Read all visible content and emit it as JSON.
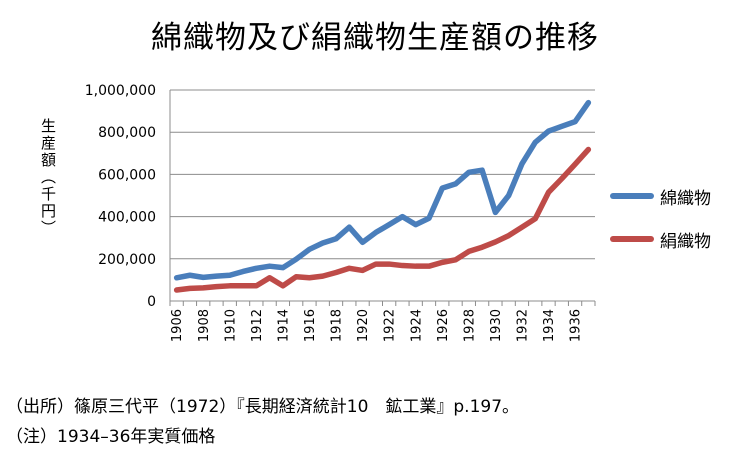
{
  "chart_data": {
    "type": "line",
    "title": "綿織物及び絹織物生産額の推移",
    "ylabel": "生産額（千円）",
    "ylim": [
      0,
      1000000
    ],
    "yticks": [
      0,
      200000,
      400000,
      600000,
      800000,
      1000000
    ],
    "ytick_labels": [
      "0",
      "200,000",
      "400,000",
      "600,000",
      "800,000",
      "1,000,000"
    ],
    "x": [
      1906,
      1907,
      1908,
      1909,
      1910,
      1911,
      1912,
      1913,
      1914,
      1915,
      1916,
      1917,
      1918,
      1919,
      1920,
      1921,
      1922,
      1923,
      1924,
      1925,
      1926,
      1927,
      1928,
      1929,
      1930,
      1931,
      1932,
      1933,
      1934,
      1935,
      1936,
      1937
    ],
    "xtick_labels": [
      "1906",
      "1908",
      "1910",
      "1912",
      "1914",
      "1916",
      "1918",
      "1920",
      "1922",
      "1924",
      "1926",
      "1928",
      "1930",
      "1932",
      "1934",
      "1936"
    ],
    "legend_position": "right",
    "grid": true,
    "series": [
      {
        "name": "綿織物",
        "color": "#4a7ebb",
        "values": [
          110000,
          122000,
          112000,
          118000,
          122000,
          140000,
          155000,
          165000,
          158000,
          198000,
          245000,
          275000,
          295000,
          350000,
          278000,
          325000,
          362000,
          400000,
          362000,
          392000,
          535000,
          555000,
          610000,
          620000,
          420000,
          500000,
          650000,
          752000,
          805000,
          828000,
          850000,
          940000
        ]
      },
      {
        "name": "絹織物",
        "color": "#be4b48",
        "values": [
          52000,
          60000,
          62000,
          68000,
          72000,
          72000,
          72000,
          110000,
          72000,
          115000,
          110000,
          118000,
          135000,
          155000,
          145000,
          175000,
          175000,
          168000,
          165000,
          165000,
          183000,
          195000,
          235000,
          255000,
          280000,
          310000,
          350000,
          390000,
          515000,
          580000,
          648000,
          718000
        ]
      }
    ]
  },
  "title": "綿織物及び絹織物生産額の推移",
  "ylabel": "生産額（千円）",
  "source": "（出所）篠原三代平（1972）『長期経済統計10　鉱工業』p.197。",
  "note": "（注）1934–36年実質価格"
}
